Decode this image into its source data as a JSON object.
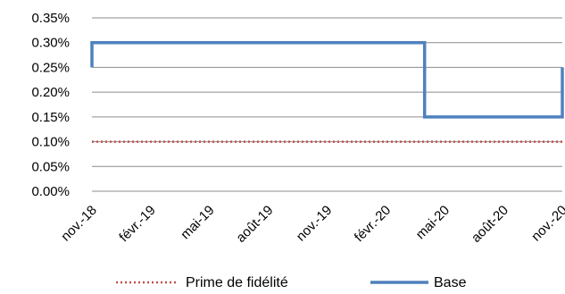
{
  "chart_data": {
    "type": "line",
    "x_tick_labels": [
      "nov.-18",
      "févr.-19",
      "mai-19",
      "août-19",
      "nov.-19",
      "févr.-20",
      "mai-20",
      "août-20",
      "nov.-20"
    ],
    "y_tick_labels": [
      "0.00%",
      "0.05%",
      "0.10%",
      "0.15%",
      "0.20%",
      "0.25%",
      "0.30%",
      "0.35%"
    ],
    "ylim": [
      0,
      0.35
    ],
    "y_unit": "%",
    "grid": "horizontal",
    "legend_position": "bottom",
    "series": [
      {
        "name": "Prime de fidélité",
        "color": "#c0504d",
        "style": "dotted",
        "points": [
          [
            "2018-11-01",
            0.1
          ],
          [
            "2020-11-01",
            0.1
          ]
        ]
      },
      {
        "name": "Base",
        "color": "#4f81bd",
        "style": "solid",
        "points": [
          [
            "2018-11-01",
            0.25
          ],
          [
            "2018-11-01",
            0.3
          ],
          [
            "2020-04-01",
            0.3
          ],
          [
            "2020-04-01",
            0.15
          ],
          [
            "2020-11-01",
            0.15
          ],
          [
            "2020-11-01",
            0.25
          ]
        ]
      }
    ]
  }
}
